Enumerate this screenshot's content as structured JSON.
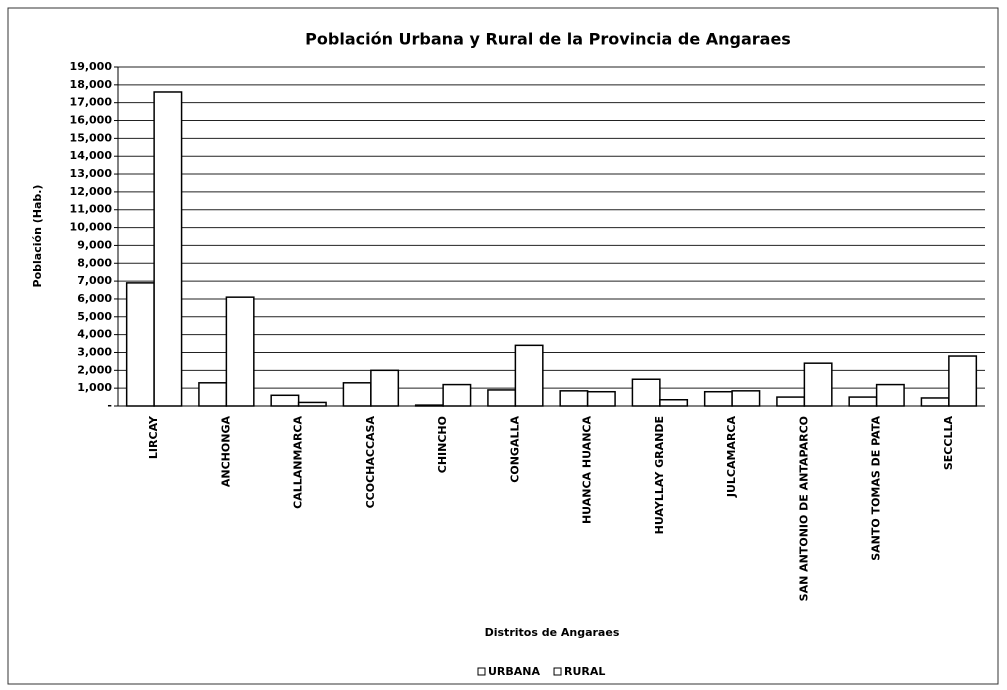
{
  "chart_data": {
    "type": "bar",
    "title": "Población Urbana y Rural de la Provincia de Angaraes",
    "x_label": "Distritos de Angaraes",
    "y_label": "Población (Hab.)",
    "categories": [
      "LIRCAY",
      "ANCHONGA",
      "CALLANMARCA",
      "CCOCHACCASA",
      "CHINCHO",
      "CONGALLA",
      "HUANCA HUANCA",
      "HUAYLLAY GRANDE",
      "JULCAMARCA",
      "SAN ANTONIO DE ANTAPARCO",
      "SANTO TOMAS DE PATA",
      "SECCLLA"
    ],
    "series": [
      {
        "name": "URBANA",
        "color": "#ffffff",
        "values": [
          6900,
          1300,
          600,
          1300,
          50,
          900,
          850,
          1500,
          800,
          500,
          500,
          450
        ]
      },
      {
        "name": "RURAL",
        "color": "#ffffff",
        "values": [
          17600,
          6100,
          200,
          2000,
          1200,
          3400,
          800,
          350,
          850,
          2400,
          1200,
          2800
        ]
      }
    ],
    "ylim": [
      0,
      19000
    ],
    "yticks": [
      {
        "value": 0,
        "label": "-"
      },
      {
        "value": 1000,
        "label": "1,000"
      },
      {
        "value": 2000,
        "label": "2,000"
      },
      {
        "value": 3000,
        "label": "3,000"
      },
      {
        "value": 4000,
        "label": "4,000"
      },
      {
        "value": 5000,
        "label": "5,000"
      },
      {
        "value": 6000,
        "label": "6,000"
      },
      {
        "value": 7000,
        "label": "7,000"
      },
      {
        "value": 8000,
        "label": "8,000"
      },
      {
        "value": 9000,
        "label": "9,000"
      },
      {
        "value": 10000,
        "label": "10,000"
      },
      {
        "value": 11000,
        "label": "11,000"
      },
      {
        "value": 12000,
        "label": "12,000"
      },
      {
        "value": 13000,
        "label": "13,000"
      },
      {
        "value": 14000,
        "label": "14,000"
      },
      {
        "value": 15000,
        "label": "15,000"
      },
      {
        "value": 16000,
        "label": "16,000"
      },
      {
        "value": 17000,
        "label": "17,000"
      },
      {
        "value": 18000,
        "label": "18,000"
      },
      {
        "value": 19000,
        "label": "19,000"
      }
    ],
    "grid": true,
    "legend": "bottom"
  }
}
